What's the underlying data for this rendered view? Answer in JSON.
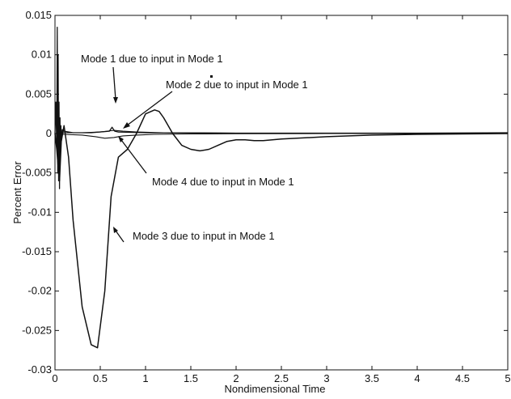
{
  "chart_data": {
    "type": "line",
    "xlabel": "Nondimensional Time",
    "ylabel": "Percent Error",
    "xlim": [
      0,
      5
    ],
    "ylim": [
      -0.03,
      0.015
    ],
    "x_ticks": [
      "0",
      "0.5",
      "1",
      "1.5",
      "2",
      "2.5",
      "3",
      "3.5",
      "4",
      "4.5",
      "5"
    ],
    "y_ticks": [
      "0.015",
      "0.01",
      "0.005",
      "0",
      "-0.005",
      "-0.01",
      "-0.015",
      "-0.02",
      "-0.025",
      "-0.03"
    ],
    "grid": false,
    "annotations": [
      "Mode 1 due to input in Mode 1",
      "Mode 2 due to input in Mode 1",
      "Mode 4 due to input in Mode 1",
      "Mode 3 due to input in Mode 1"
    ],
    "series": [
      {
        "annotation": "Mode 3 due to input in Mode 1",
        "x": [
          0,
          0.02,
          0.04,
          0.05,
          0.07,
          0.1,
          0.15,
          0.2,
          0.3,
          0.4,
          0.47,
          0.55,
          0.62,
          0.7,
          0.8,
          0.9,
          1.0,
          1.1,
          1.15,
          1.2,
          1.3,
          1.4,
          1.5,
          1.6,
          1.7,
          1.8,
          1.9,
          2.0,
          2.1,
          2.2,
          2.3,
          2.5,
          3.0,
          3.5,
          4.0,
          4.5,
          5.0
        ],
        "y": [
          0,
          -0.002,
          -0.005,
          -0.006,
          -0.001,
          0.001,
          -0.003,
          -0.011,
          -0.022,
          -0.0268,
          -0.0272,
          -0.02,
          -0.008,
          -0.003,
          -0.002,
          0.0,
          0.0025,
          0.003,
          0.0028,
          0.002,
          0.0,
          -0.0015,
          -0.002,
          -0.0022,
          -0.002,
          -0.0015,
          -0.001,
          -0.0008,
          -0.0008,
          -0.0009,
          -0.0009,
          -0.0007,
          -0.0004,
          -0.0002,
          -0.0001,
          -5e-05,
          0
        ]
      },
      {
        "annotation": "Mode 1 due to input in Mode 1",
        "x": [
          0,
          0.01,
          0.02,
          0.025,
          0.03,
          0.035,
          0.04,
          0.045,
          0.05,
          0.055,
          0.06,
          0.065,
          0.07,
          0.08,
          0.1,
          0.2,
          0.4,
          0.6,
          0.63,
          0.66,
          0.7,
          1.0,
          2.0,
          3.0,
          4.0,
          5.0
        ],
        "y": [
          0,
          0.004,
          -0.002,
          0.0135,
          -0.005,
          0.01,
          -0.006,
          0.004,
          -0.007,
          0.002,
          -0.003,
          0.001,
          -0.001,
          0.0005,
          0.0003,
          0.0001,
          0.0001,
          0.0003,
          0.0008,
          0.0003,
          0.0002,
          0.0001,
          5e-05,
          5e-05,
          5e-05,
          0.0001
        ]
      },
      {
        "annotation": "Mode 2 due to input in Mode 1",
        "x": [
          0,
          0.1,
          0.3,
          0.5,
          0.65,
          0.75,
          0.9,
          1.2,
          2.0,
          3.0,
          4.0,
          5.0
        ],
        "y": [
          0,
          0.0001,
          0.0001,
          0.0002,
          0.0004,
          0.0003,
          0.0002,
          0.0001,
          5e-05,
          3e-05,
          2e-05,
          1e-05
        ]
      },
      {
        "annotation": "Mode 4 due to input in Mode 1",
        "x": [
          0,
          0.1,
          0.3,
          0.45,
          0.55,
          0.65,
          0.75,
          0.9,
          1.1,
          1.5,
          2.0,
          3.0,
          4.0,
          5.0
        ],
        "y": [
          0,
          -0.0001,
          -0.0002,
          -0.0004,
          -0.0006,
          -0.0005,
          -0.0003,
          -0.0002,
          -0.0001,
          -5e-05,
          -2e-05,
          0,
          0,
          0
        ]
      }
    ]
  }
}
